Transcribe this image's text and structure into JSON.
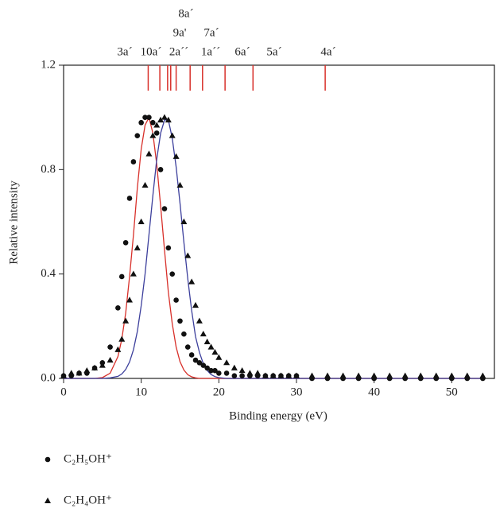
{
  "chart_data": {
    "type": "scatter",
    "xlabel": "Binding energy (eV)",
    "ylabel": "Relative intensity",
    "xlim": [
      0,
      55.5
    ],
    "ylim": [
      0,
      1.2
    ],
    "xticks": [
      0,
      10,
      20,
      30,
      40,
      50
    ],
    "yticks": [
      {
        "value": 0,
        "label": "0.0"
      },
      0.4,
      0.8,
      1.2
    ],
    "x": [
      0,
      1,
      2,
      3,
      4,
      5,
      6,
      7,
      7.5,
      8,
      8.5,
      9,
      9.5,
      10,
      10.5,
      11,
      11.5,
      12,
      12.5,
      13,
      13.5,
      14,
      14.5,
      15,
      15.5,
      16,
      16.5,
      17,
      17.5,
      18,
      18.5,
      19,
      19.5,
      20,
      21,
      22,
      23,
      24,
      25,
      26,
      27,
      28,
      29,
      30,
      32,
      34,
      36,
      38,
      40,
      42,
      44,
      46,
      48,
      50,
      52,
      54
    ],
    "series": [
      {
        "name": "C₂H₅OH⁺",
        "marker": "circle",
        "color": "#111111",
        "values": [
          0.01,
          0.01,
          0.02,
          0.02,
          0.04,
          0.06,
          0.12,
          0.27,
          0.39,
          0.52,
          0.69,
          0.83,
          0.93,
          0.98,
          1.0,
          1.0,
          0.98,
          0.94,
          0.8,
          0.65,
          0.5,
          0.4,
          0.3,
          0.22,
          0.17,
          0.12,
          0.09,
          0.07,
          0.06,
          0.05,
          0.04,
          0.03,
          0.03,
          0.02,
          0.02,
          0.01,
          0.01,
          0.01,
          0.01,
          0.01,
          0.01,
          0.01,
          0.01,
          0.01,
          0,
          0,
          0,
          0,
          0,
          0,
          0,
          0,
          0,
          0,
          0,
          0
        ]
      },
      {
        "name": "C₂H₄OH⁺",
        "marker": "triangle",
        "color": "#111111",
        "values": [
          0.01,
          0.02,
          0.02,
          0.03,
          0.04,
          0.05,
          0.07,
          0.11,
          0.15,
          0.22,
          0.3,
          0.4,
          0.5,
          0.6,
          0.74,
          0.86,
          0.93,
          0.97,
          0.99,
          1.0,
          0.99,
          0.93,
          0.85,
          0.74,
          0.6,
          0.47,
          0.37,
          0.28,
          0.22,
          0.17,
          0.14,
          0.12,
          0.1,
          0.08,
          0.06,
          0.04,
          0.03,
          0.02,
          0.02,
          0.01,
          0.01,
          0.01,
          0.01,
          0.01,
          0.01,
          0.01,
          0.01,
          0.01,
          0.01,
          0.01,
          0.01,
          0.01,
          0.01,
          0.01,
          0.01,
          0.01
        ]
      }
    ],
    "fits": [
      {
        "color": "#d8302a",
        "values": [
          0,
          0,
          0,
          0,
          0,
          0.003,
          0.02,
          0.084,
          0.15,
          0.25,
          0.39,
          0.55,
          0.73,
          0.88,
          0.97,
          1.0,
          0.94,
          0.82,
          0.66,
          0.49,
          0.33,
          0.21,
          0.12,
          0.064,
          0.032,
          0.014,
          0.006,
          0.002,
          0,
          0,
          0,
          0,
          0,
          0,
          0,
          0,
          0,
          0,
          0,
          0,
          0,
          0,
          0,
          0,
          0,
          0,
          0,
          0,
          0,
          0,
          0,
          0,
          0,
          0,
          0,
          0
        ]
      },
      {
        "color": "#3c3f9c",
        "values": [
          0,
          0,
          0,
          0,
          0,
          0,
          0.002,
          0.008,
          0.017,
          0.034,
          0.063,
          0.11,
          0.18,
          0.28,
          0.4,
          0.55,
          0.7,
          0.84,
          0.94,
          0.99,
          0.99,
          0.92,
          0.81,
          0.67,
          0.52,
          0.38,
          0.26,
          0.16,
          0.1,
          0.056,
          0.03,
          0.015,
          0.007,
          0.003,
          0,
          0,
          0,
          0,
          0,
          0,
          0,
          0,
          0,
          0,
          0,
          0,
          0,
          0,
          0,
          0,
          0,
          0,
          0,
          0,
          0,
          0
        ]
      }
    ],
    "orbital_color": "#d8302a",
    "orbitals": [
      {
        "label": "3a´",
        "value": 10.9
      },
      {
        "label": "10a´",
        "value": 12.4
      },
      {
        "label": "2a´´",
        "value": 13.4
      },
      {
        "label": "9a'",
        "value": 13.8
      },
      {
        "label": "8a´",
        "value": 14.5
      },
      {
        "label": "7a´",
        "value": 16.3
      },
      {
        "label": "1a´´",
        "value": 17.9
      },
      {
        "label": "6a´",
        "value": 20.8
      },
      {
        "label": "5a´",
        "value": 24.4
      },
      {
        "label": "4a´",
        "value": 33.7
      }
    ]
  }
}
